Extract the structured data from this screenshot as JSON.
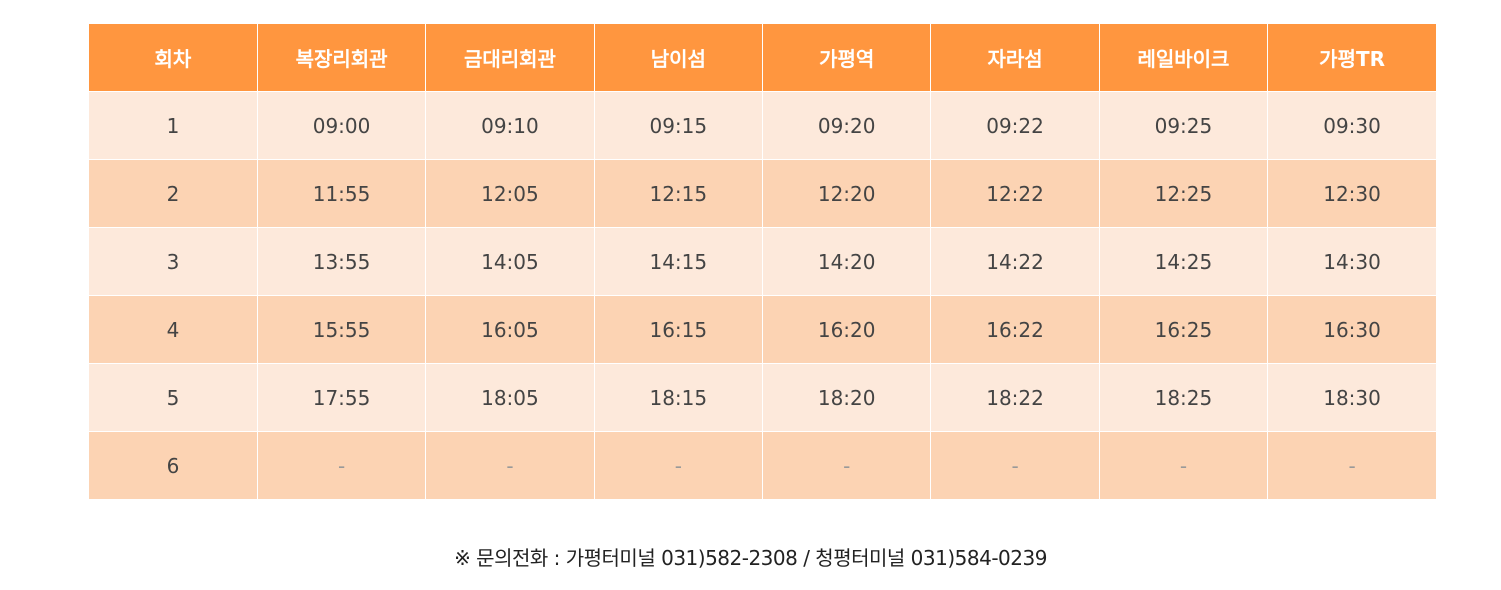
{
  "table": {
    "headers": [
      "회차",
      "복장리회관",
      "금대리회관",
      "남이섬",
      "가평역",
      "자라섬",
      "레일바이크",
      "가평TR"
    ],
    "rows": [
      [
        "1",
        "09:00",
        "09:10",
        "09:15",
        "09:20",
        "09:22",
        "09:25",
        "09:30"
      ],
      [
        "2",
        "11:55",
        "12:05",
        "12:15",
        "12:20",
        "12:22",
        "12:25",
        "12:30"
      ],
      [
        "3",
        "13:55",
        "14:05",
        "14:15",
        "14:20",
        "14:22",
        "14:25",
        "14:30"
      ],
      [
        "4",
        "15:55",
        "16:05",
        "16:15",
        "16:20",
        "16:22",
        "16:25",
        "16:30"
      ],
      [
        "5",
        "17:55",
        "18:05",
        "18:15",
        "18:20",
        "18:22",
        "18:25",
        "18:30"
      ],
      [
        "6",
        "-",
        "-",
        "-",
        "-",
        "-",
        "-",
        "-"
      ]
    ]
  },
  "note": "※ 문의전화 : 가평터미널 031)582-2308 / 청평터미널 031)584-0239",
  "colors": {
    "header_bg": "#ff963f",
    "row_light": "#fde9db",
    "row_dark": "#fcd3b3"
  }
}
